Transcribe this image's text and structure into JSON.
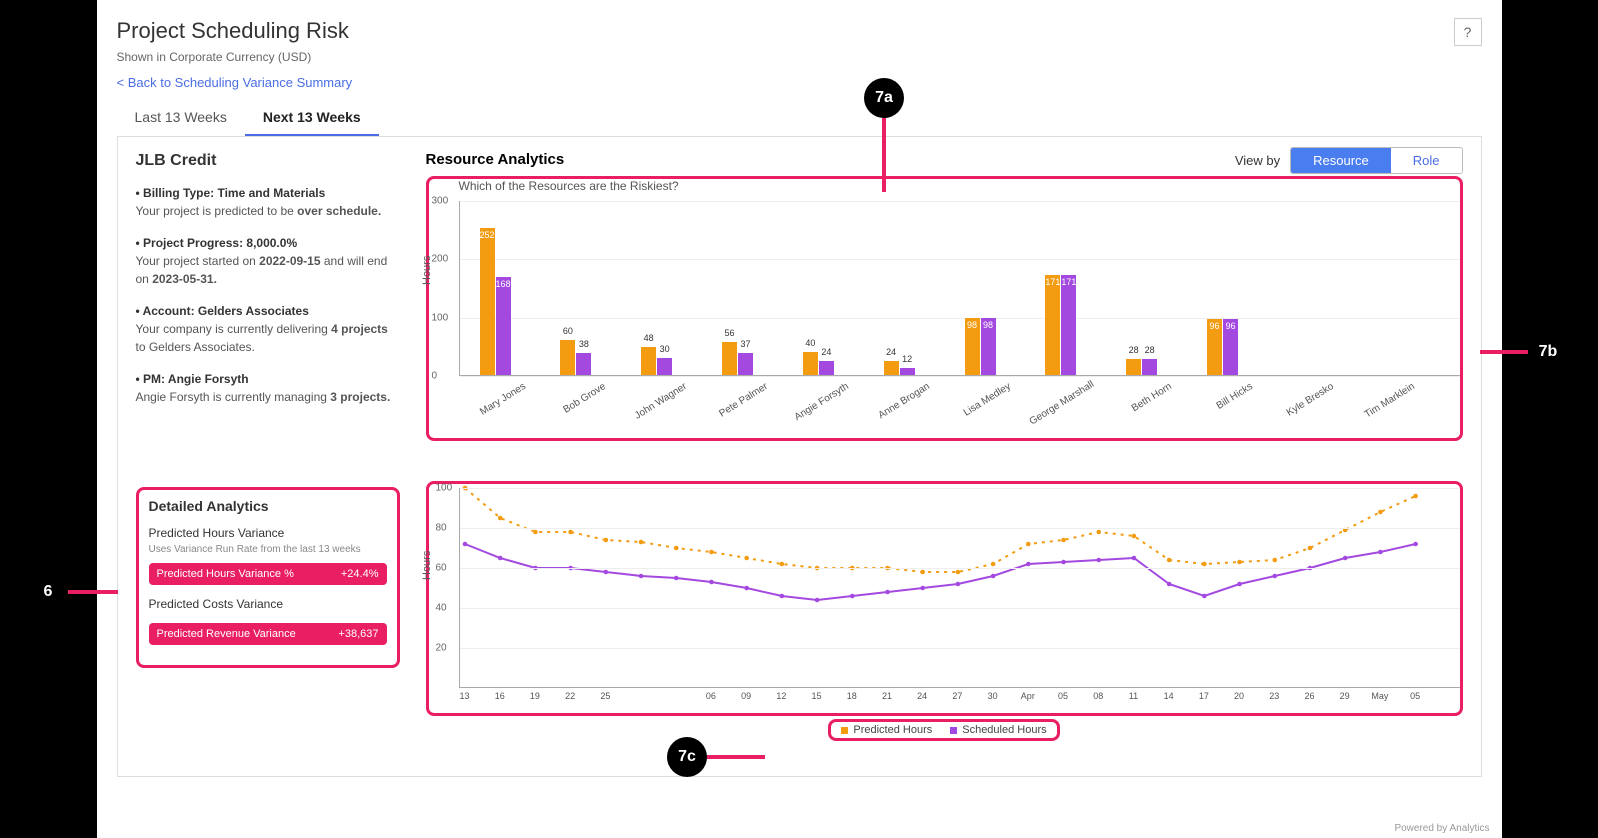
{
  "header": {
    "title": "Project Scheduling Risk",
    "subtitle": "Shown in Corporate Currency (USD)",
    "back_link": "< Back to Scheduling Variance Summary",
    "help": "?"
  },
  "tabs": {
    "t0": "Last 13 Weeks",
    "t1": "Next 13 Weeks"
  },
  "project": {
    "name": "JLB Credit",
    "billing_head": "• Billing Type: Time and Materials",
    "billing_body_pre": "Your project is predicted to be ",
    "billing_body_bold": "over schedule.",
    "progress_head": "• Project Progress: 8,000.0%",
    "progress_body_1": "Your project started on ",
    "progress_date1": "2022-09-15",
    "progress_body_2": " and will end on ",
    "progress_date2": "2023-05-31.",
    "account_head": "• Account: Gelders Associates",
    "account_body_1": "Your company is currently delivering ",
    "account_bold": "4 projects",
    "account_body_2": " to Gelders Associates.",
    "pm_head": "• PM: Angie Forsyth",
    "pm_body_1": "Angie Forsyth is currently managing ",
    "pm_bold": "3 projects."
  },
  "resource_analytics": {
    "title": "Resource Analytics",
    "viewby_label": "View by",
    "btn_resource": "Resource",
    "btn_role": "Role",
    "subtitle": "Which of the Resources are the Riskiest?",
    "y_axis": "Hours"
  },
  "bar_chart": {
    "ymax": 300,
    "yticks": [
      0,
      100,
      200,
      300
    ],
    "colors": {
      "predicted": "#f39c12",
      "scheduled": "#a349e0"
    },
    "resources": [
      {
        "name": "Mary Jones",
        "predicted": 252,
        "scheduled": 168
      },
      {
        "name": "Bob Grove",
        "predicted": 60,
        "scheduled": 38
      },
      {
        "name": "John Wagner",
        "predicted": 48,
        "scheduled": 30
      },
      {
        "name": "Pete Palmer",
        "predicted": 56,
        "scheduled": 37
      },
      {
        "name": "Angie Forsyth",
        "predicted": 40,
        "scheduled": 24
      },
      {
        "name": "Anne Brogan",
        "predicted": 24,
        "scheduled": 12
      },
      {
        "name": "Lisa Medley",
        "predicted": 98,
        "scheduled": 98
      },
      {
        "name": "George Marshall",
        "predicted": 171,
        "scheduled": 171
      },
      {
        "name": "Beth Horn",
        "predicted": 28,
        "scheduled": 28
      },
      {
        "name": "Bill Hicks",
        "predicted": 96,
        "scheduled": 96
      },
      {
        "name": "Kyle Bresko",
        "predicted": 0,
        "scheduled": 0
      },
      {
        "name": "Tim Marklein",
        "predicted": 0,
        "scheduled": 0
      }
    ]
  },
  "detailed_analytics": {
    "title": "Detailed Analytics",
    "metric1_head": "Predicted Hours Variance",
    "metric1_hint": "Uses Variance Run Rate from the last 13 weeks",
    "pill1_label": "Predicted Hours Variance %",
    "pill1_value": "+24.4%",
    "metric2_head": "Predicted Costs Variance",
    "pill2_label": "Predicted Revenue Variance",
    "pill2_value": "+38,637"
  },
  "line_chart": {
    "y_axis": "Hours",
    "ymax": 100,
    "yticks": [
      20,
      40,
      60,
      80,
      100
    ],
    "colors": {
      "predicted": "#f39c12",
      "scheduled": "#a349e0"
    },
    "x_labels": [
      "13",
      "16",
      "19",
      "22",
      "25",
      "",
      "",
      "06",
      "09",
      "12",
      "15",
      "18",
      "21",
      "24",
      "27",
      "30",
      "Apr",
      "05",
      "08",
      "11",
      "14",
      "17",
      "20",
      "23",
      "26",
      "29",
      "May",
      "05"
    ],
    "predicted": [
      100,
      85,
      78,
      78,
      74,
      73,
      70,
      68,
      65,
      62,
      60,
      60,
      60,
      58,
      58,
      62,
      72,
      74,
      78,
      76,
      64,
      62,
      63,
      64,
      70,
      79,
      88,
      96
    ],
    "scheduled": [
      72,
      65,
      60,
      60,
      58,
      56,
      55,
      53,
      50,
      46,
      44,
      46,
      48,
      50,
      52,
      56,
      62,
      63,
      64,
      65,
      52,
      46,
      52,
      56,
      60,
      65,
      68,
      72
    ],
    "legend_predicted": "Predicted Hours",
    "legend_scheduled": "Scheduled Hours"
  },
  "annotations": {
    "a6": "6",
    "a7a": "7a",
    "a7b": "7b",
    "a7c": "7c"
  },
  "footer": {
    "powered": "Powered by Analytics"
  }
}
